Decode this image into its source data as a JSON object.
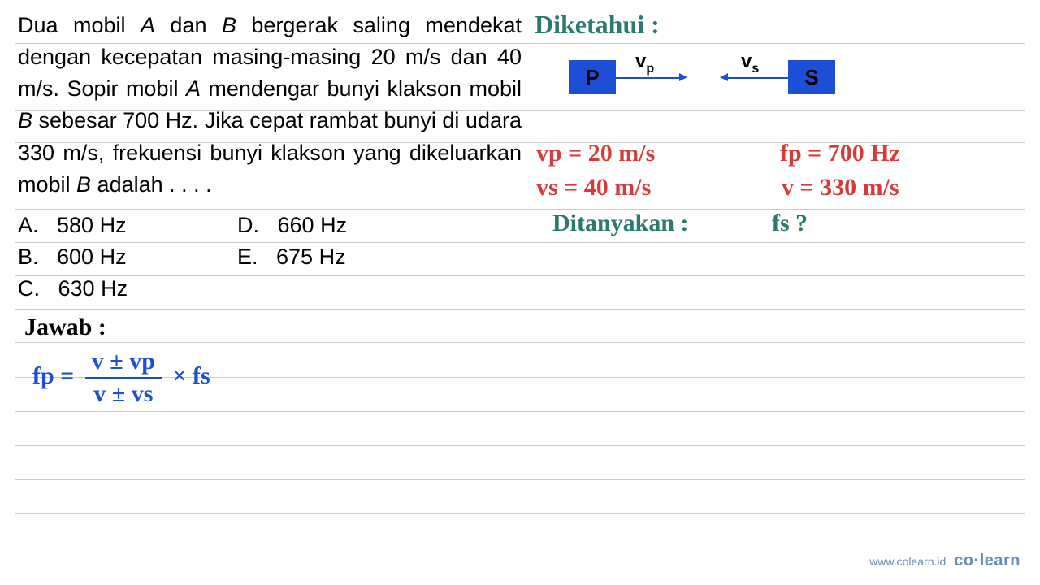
{
  "ruled_line_positions": [
    53,
    93,
    135,
    175,
    216,
    257,
    298,
    339,
    380,
    421,
    464,
    506,
    548,
    590,
    632,
    674
  ],
  "question": {
    "text": "Dua mobil A dan B bergerak saling mendekat dengan kecepatan masing-masing 20 m/s dan 40 m/s. Sopir mobil A mendengar bunyi klakson mobil B sebesar 700 Hz. Jika cepat rambat bunyi di udara 330 m/s, frekuensi bunyi klakson yang dikeluarkan mobil B adalah . . . ."
  },
  "options": {
    "A": "580 Hz",
    "B": "600 Hz",
    "C": "630 Hz",
    "D": "660 Hz",
    "E": "675 Hz"
  },
  "handwriting": {
    "diketahui": "Diketahui :",
    "box_p": "P",
    "box_s": "S",
    "vp_sym": "v",
    "vp_sub": "p",
    "vs_sym": "v",
    "vs_sub": "s",
    "vp_line": "vp = 20 m/s",
    "vs_line": "vs = 40 m/s",
    "fp_line": "fp = 700 Hz",
    "v_line": "v = 330 m/s",
    "ditanyakan": "Ditanyakan :",
    "fs_q": "fs ?",
    "jawab": "Jawab :",
    "formula_lhs": "fp =",
    "formula_num": "v ± vp",
    "formula_den": "v ± vs",
    "formula_rhs": "× fs"
  },
  "footer": {
    "url": "www.colearn.id",
    "brand": "co·learn"
  },
  "colors": {
    "rule": "#c9c9c9",
    "blue": "#1d4fd6",
    "red": "#d63a3a",
    "green": "#2b7a6f",
    "text": "#000000",
    "footer": "#6a8bbd"
  }
}
